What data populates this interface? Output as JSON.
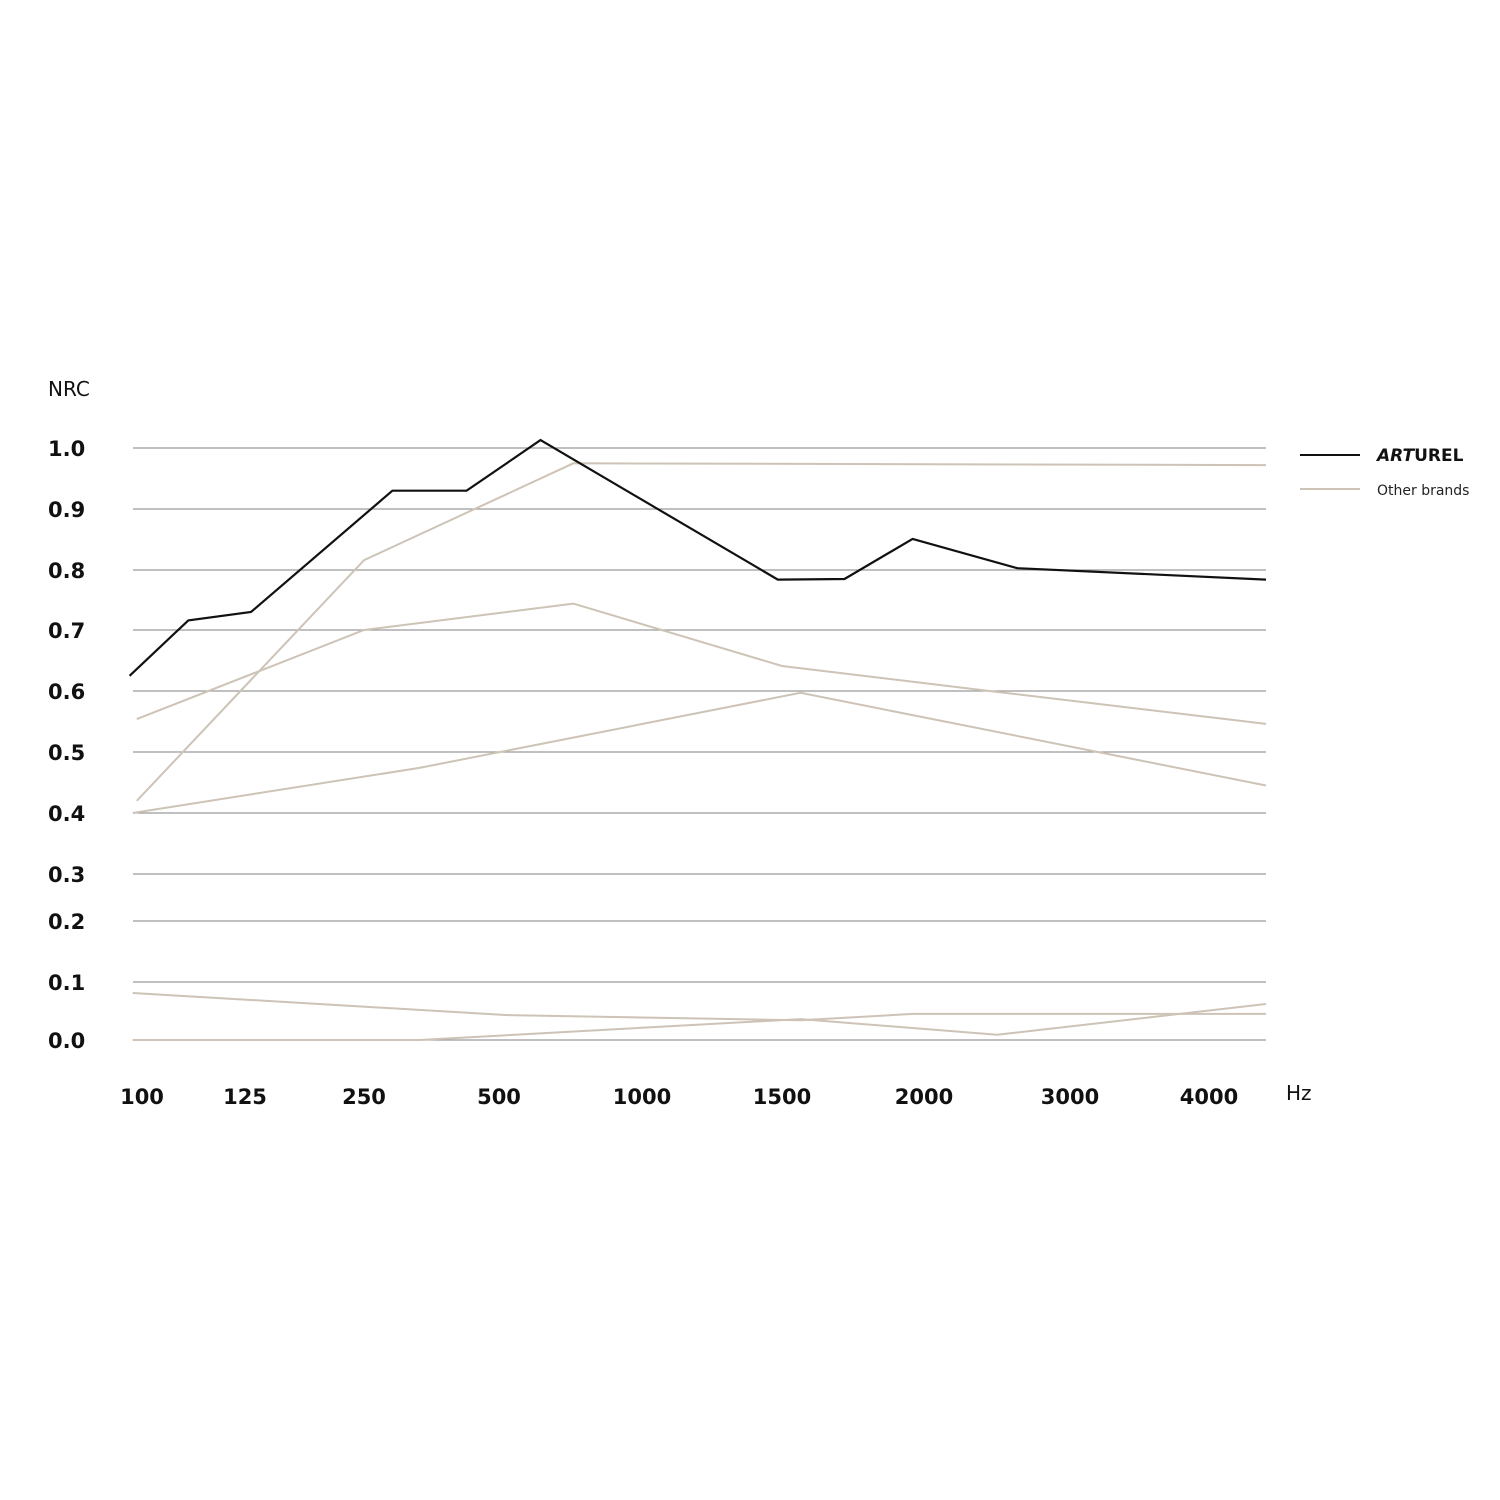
{
  "chart_data": {
    "type": "line",
    "title": "",
    "ylabel": "NRC",
    "xlabel": "Hz",
    "x_categories": [
      "100",
      "125",
      "250",
      "500",
      "1000",
      "1500",
      "2000",
      "3000",
      "4000"
    ],
    "y_ticks": [
      "1.0",
      "0.9",
      "0.8",
      "0.7",
      "0.6",
      "0.5",
      "0.4",
      "0.3",
      "0.2",
      "0.1",
      "0.0"
    ],
    "ylim": [
      0,
      1.0
    ],
    "grid": true,
    "legend_position": "right",
    "legend": [
      {
        "name": "ARTUREL",
        "color": "#111111"
      },
      {
        "name": "Other brands",
        "color": "#cdc3b6"
      }
    ],
    "series": [
      {
        "name": "ARTUREL",
        "color": "#111111",
        "x": [
          -0.12,
          0.45,
          1.05,
          2.21,
          2.76,
          3.29,
          4.97,
          5.44,
          5.92,
          6.64,
          8.41
        ],
        "y": [
          0.625,
          0.716,
          0.73,
          0.93,
          0.93,
          1.013,
          0.784,
          0.785,
          0.851,
          0.803,
          0.784
        ]
      },
      {
        "color": "#cdc3b6",
        "x": [
          -0.05,
          2.0,
          3.52,
          8.41
        ],
        "y": [
          0.42,
          0.816,
          0.975,
          0.972
        ]
      },
      {
        "color": "#cdc3b6",
        "x": [
          -0.05,
          2.0,
          3.52,
          5.0,
          6.52,
          8.41
        ],
        "y": [
          0.554,
          0.7,
          0.744,
          0.641,
          0.598,
          0.546
        ]
      },
      {
        "color": "#cdc3b6",
        "x": [
          -0.09,
          2.41,
          5.13,
          8.41
        ],
        "y": [
          0.4,
          0.474,
          0.597,
          0.445
        ]
      },
      {
        "color": "#cdc3b6",
        "x": [
          -0.09,
          3.06,
          5.13,
          5.92,
          8.41
        ],
        "y": [
          0.081,
          0.043,
          0.034,
          0.045,
          0.045
        ]
      },
      {
        "color": "#cdc3b6",
        "x": [
          -0.09,
          2.41,
          5.13,
          6.5,
          8.41
        ],
        "y": [
          0.0,
          0.0,
          0.036,
          0.009,
          0.062
        ]
      }
    ]
  }
}
